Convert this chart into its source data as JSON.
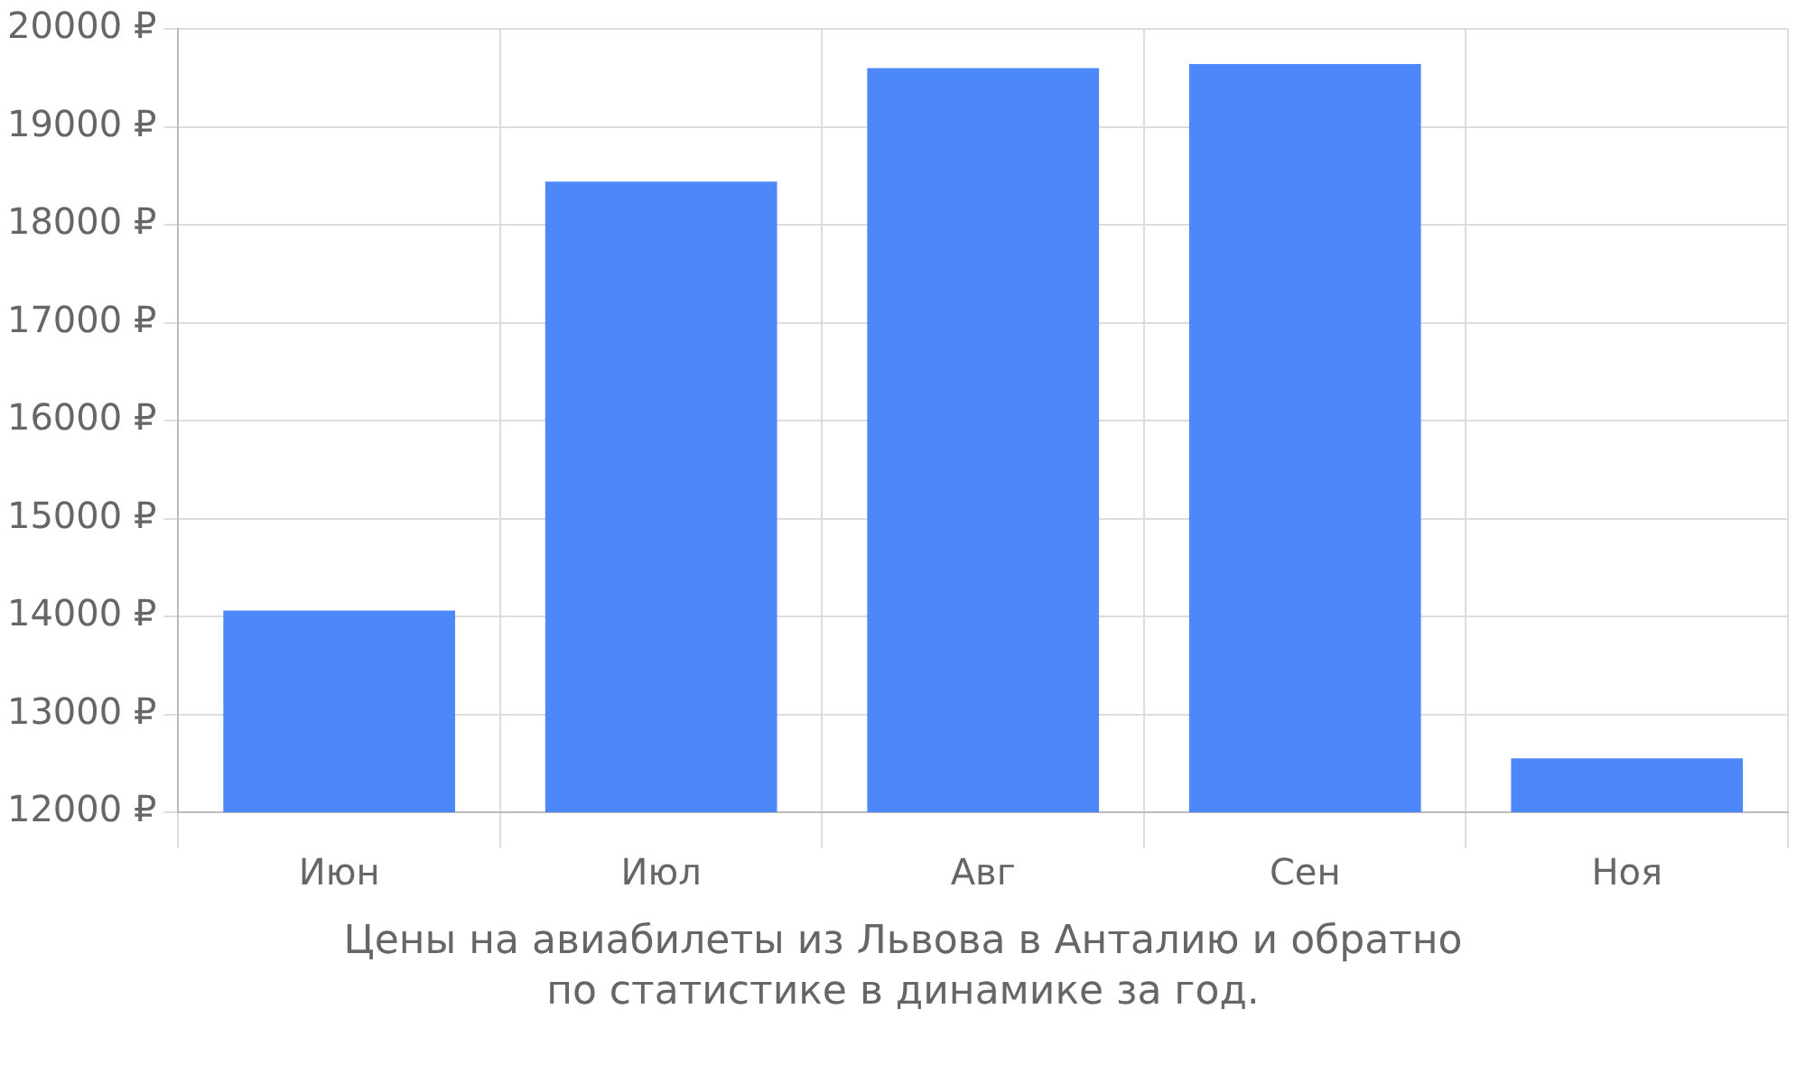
{
  "chart_data": {
    "type": "bar",
    "categories": [
      "Июн",
      "Июл",
      "Авг",
      "Сен",
      "Ноя"
    ],
    "values": [
      14060,
      18440,
      19600,
      19640,
      12550
    ],
    "color": "#4d88f9",
    "ylim": [
      12000,
      20000
    ],
    "yticks": [
      {
        "value": 12000,
        "label": "12000 ₽"
      },
      {
        "value": 13000,
        "label": "13000 ₽"
      },
      {
        "value": 14000,
        "label": "14000 ₽"
      },
      {
        "value": 15000,
        "label": "15000 ₽"
      },
      {
        "value": 16000,
        "label": "16000 ₽"
      },
      {
        "value": 17000,
        "label": "17000 ₽"
      },
      {
        "value": 18000,
        "label": "18000 ₽"
      },
      {
        "value": 19000,
        "label": "19000 ₽"
      },
      {
        "value": 20000,
        "label": "20000 ₽"
      }
    ],
    "grid": true,
    "legend": false,
    "annotations": [
      "Цены на авиабилеты из Львова в Анталию и обратно\nпо статистике в динамике за год."
    ]
  }
}
